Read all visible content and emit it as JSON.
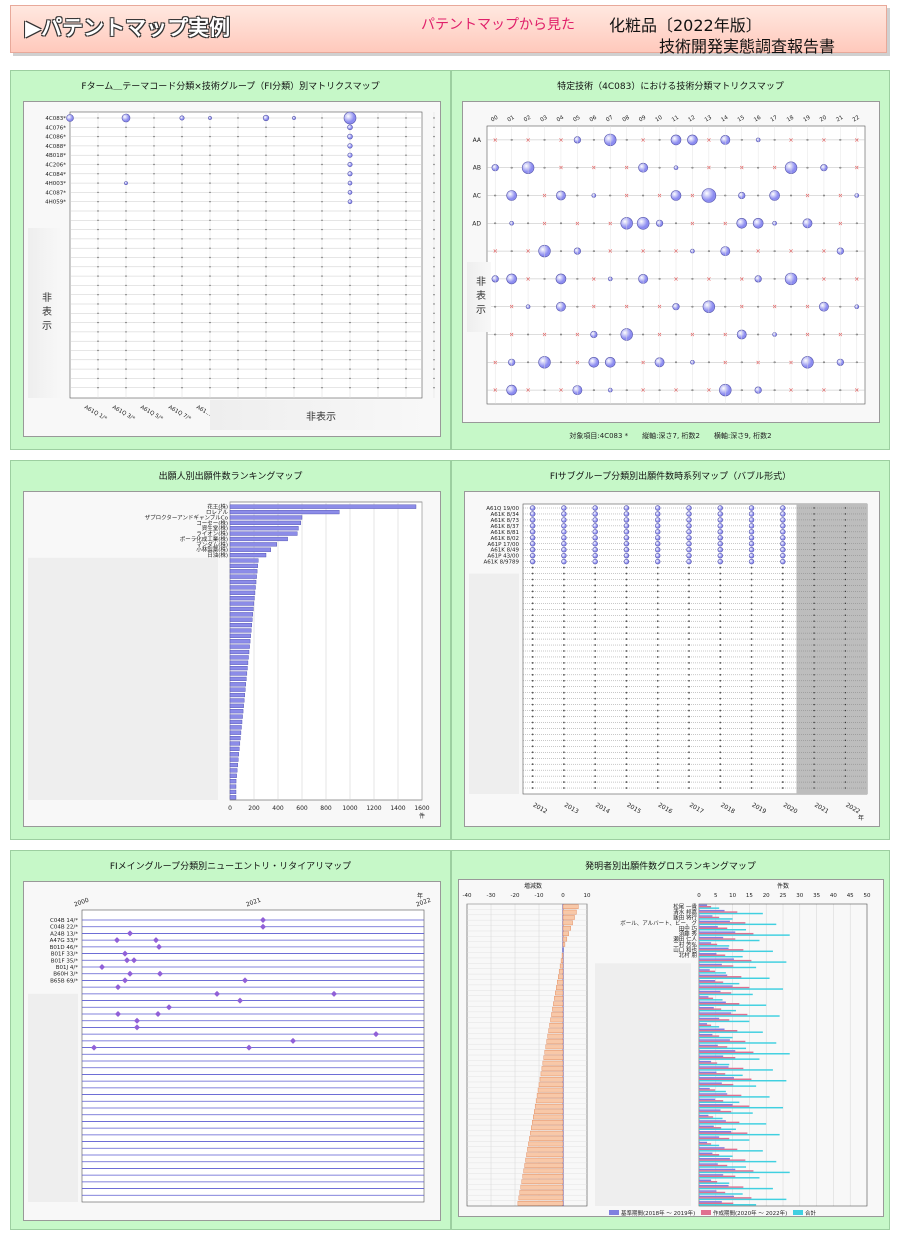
{
  "header": {
    "title": "▶パテントマップ実例",
    "subtitle": "パテントマップから見た",
    "product": "化粧品〔2022年版〕",
    "report": "技術開発実態調査報告書"
  },
  "panels": [
    {
      "title": "Fターム＿テーマコード分類×技術グループ（FI分類）別マトリクスマップ",
      "hidden_y": "非表示",
      "hidden_x": "非表示"
    },
    {
      "title": "特定技術（4C083）における技術分類マトリクスマップ",
      "hidden_y": "非表示",
      "note": "対象項目:4C083 *　　縦軸:深さ7, 桁数2　　横軸:深さ9, 桁数2"
    },
    {
      "title": "出願人別出願件数ランキングマップ",
      "axis_unit": "件"
    },
    {
      "title": "FIサブグループ分類別出願件数時系列マップ（バブル形式）",
      "axis_unit": "年"
    },
    {
      "title": "FIメイングループ分類別ニューエントリ・リタイアリマップ",
      "axis_unit": "年"
    },
    {
      "title": "発明者別出願件数グロスランキングマップ",
      "left_label": "増減数",
      "right_label": "件数"
    }
  ],
  "chart_data": [
    {
      "type": "scatter",
      "title": "Fターム＿テーマコード分類×技術グループ（FI分類）別マトリクスマップ",
      "y_labels": [
        "4C083*",
        "4C076*",
        "4C086*",
        "4C088*",
        "4B018*",
        "4C206*",
        "4C084*",
        "4H003*",
        "4C087*",
        "4H059*"
      ],
      "x_labels": [
        "A61Q 1/*",
        "A61Q 3/*",
        "A61Q 5/*",
        "A61Q 7/*",
        "A61..."
      ]
    },
    {
      "type": "scatter",
      "title": "特定技術（4C083）における技術分類マトリクスマップ",
      "x_labels": [
        "00",
        "01",
        "02",
        "03",
        "04",
        "05",
        "06",
        "07",
        "08",
        "09",
        "10",
        "11",
        "12",
        "13",
        "14",
        "15",
        "16",
        "17",
        "18",
        "19",
        "20",
        "21",
        "22"
      ],
      "y_labels": [
        "AA",
        "AB",
        "AC",
        "AD"
      ]
    },
    {
      "type": "bar",
      "title": "出願人別出願件数ランキングマップ",
      "categories": [
        "花王(株)",
        "ロレアル",
        "ザプロクターアンドギャンブルCo",
        "コーセー(株)",
        "資生堂(株)",
        "ライオン(株)",
        "ポーラ化成工業(株)",
        "マンダム(株)",
        "小林製薬(株)",
        "日油(株)"
      ],
      "values": [
        1550,
        910,
        600,
        590,
        570,
        560,
        480,
        390,
        340,
        300
      ],
      "xlim": [
        0,
        1600
      ],
      "xticks": [
        "0",
        "200",
        "400",
        "600",
        "800",
        "1000",
        "1200",
        "1400",
        "1600"
      ],
      "xunit": "件"
    },
    {
      "type": "scatter",
      "title": "FIサブグループ分類別出願件数時系列マップ（バブル形式）",
      "y_labels": [
        "A61Q 19/00",
        "A61K 8/34",
        "A61K 8/73",
        "A61K 8/37",
        "A61K 8/81",
        "A61K 8/02",
        "A61P 17/00",
        "A61K 8/49",
        "A61P 43/00",
        "A61K 8/9789"
      ],
      "x_labels": [
        "2012",
        "2013",
        "2014",
        "2015",
        "2016",
        "2017",
        "2018",
        "2019",
        "2020",
        "2021",
        "2022"
      ],
      "xunit": "年"
    },
    {
      "type": "scatter",
      "title": "FIメイングループ分類別ニューエントリ・リタイアリマップ",
      "y_labels": [
        "C04B 14/*",
        "C04B 22/*",
        "A24B 13/*",
        "A47G 33/*",
        "B01D 46/*",
        "B01F 33/*",
        "B01F 35/*",
        "B01J 4/*",
        "B60H 3/*",
        "B65B 69/*"
      ],
      "x_labels": [
        "2000",
        "2021",
        "2022"
      ],
      "xunit": "年"
    },
    {
      "type": "bar",
      "title": "発明者別出願件数グロスランキングマップ",
      "categories": [
        "松尾 一貴",
        "清水 邦嘉",
        "飯田 将行",
        "ボール、アルバート、ビー、グ",
        "田中 巧",
        "須藤 秀",
        "瀬田 仁人",
        "二村 芳弘",
        "山口 和也",
        "北村 朋"
      ],
      "diff_ticks": [
        "-40",
        "-30",
        "-20",
        "-10",
        "0",
        "10"
      ],
      "count_ticks": [
        "0",
        "5",
        "10",
        "15",
        "20",
        "25",
        "30",
        "35",
        "40",
        "45",
        "50"
      ],
      "legend": [
        "基準期間(2018年 ～ 2019年)",
        "作成期間(2020年 ～ 2022年)",
        "合計"
      ],
      "colors": [
        "#8080e0",
        "#e07090",
        "#40d0e0"
      ]
    }
  ]
}
